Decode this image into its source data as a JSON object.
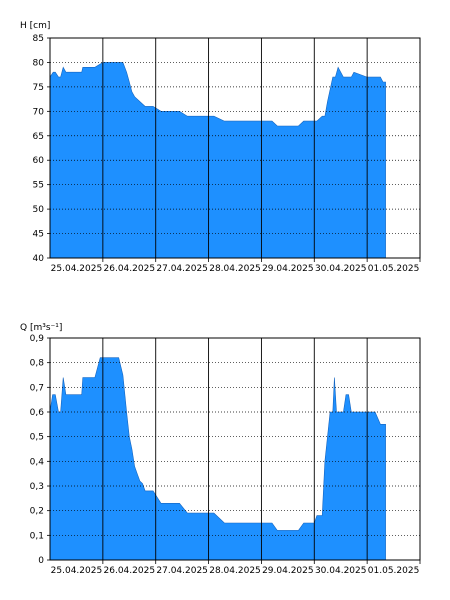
{
  "chart_data": [
    {
      "type": "area",
      "ylabel": "H [cm]",
      "ylim": [
        40,
        85
      ],
      "yticks": [
        "40",
        "45",
        "50",
        "55",
        "60",
        "65",
        "70",
        "75",
        "80",
        "85"
      ],
      "xlim": [
        0,
        7.0
      ],
      "x_tick_labels": [
        "25.04.2025",
        "26.04.2025",
        "27.04.2025",
        "28.04.2025",
        "29.04.2025",
        "30.04.2025",
        "01.05.2025"
      ],
      "grid": true,
      "fill_color": "#1e90ff",
      "series": [
        {
          "x": [
            0,
            0.06,
            0.1,
            0.16,
            0.2,
            0.25,
            0.3,
            0.33,
            0.5,
            0.6,
            0.62,
            0.8,
            0.85,
            1.0,
            1.3,
            1.38,
            1.45,
            1.5,
            1.55,
            1.6,
            1.7,
            1.8,
            1.95,
            2.1,
            2.3,
            2.45,
            2.6,
            3.0,
            3.1,
            3.3,
            3.5,
            3.7,
            3.9,
            4.2,
            4.3,
            4.5,
            4.6,
            4.7,
            4.8,
            5.0,
            5.05,
            5.15,
            5.2,
            5.25,
            5.35,
            5.4,
            5.45,
            5.55,
            5.6,
            5.65,
            5.7,
            5.75,
            6.0,
            6.2,
            6.25,
            6.3,
            6.35
          ],
          "y": [
            77,
            78,
            78,
            77,
            77,
            79,
            78,
            78,
            78,
            78,
            79,
            79,
            79,
            80,
            80,
            80,
            78,
            76,
            74,
            73,
            72,
            71,
            71,
            70,
            70,
            70,
            69,
            69,
            69,
            68,
            68,
            68,
            68,
            68,
            67,
            67,
            67,
            67,
            68,
            68,
            68,
            69,
            69,
            72,
            77,
            77,
            79,
            77,
            77,
            77,
            77,
            78,
            77,
            77,
            77,
            76,
            76
          ]
        }
      ]
    },
    {
      "type": "area",
      "ylabel": "Q [m³s⁻¹]",
      "ylim": [
        0,
        0.9
      ],
      "yticks": [
        "0",
        "0,1",
        "0,2",
        "0,3",
        "0,4",
        "0,5",
        "0,6",
        "0,7",
        "0,8",
        "0,9"
      ],
      "xlim": [
        0,
        7.0
      ],
      "x_tick_labels": [
        "25.04.2025",
        "26.04.2025",
        "27.04.2025",
        "28.04.2025",
        "29.04.2025",
        "30.04.2025",
        "01.05.2025"
      ],
      "grid": true,
      "fill_color": "#1e90ff",
      "series": [
        {
          "x": [
            0,
            0.05,
            0.1,
            0.16,
            0.2,
            0.25,
            0.3,
            0.33,
            0.5,
            0.6,
            0.62,
            0.8,
            0.85,
            0.95,
            1.0,
            1.3,
            1.38,
            1.45,
            1.5,
            1.55,
            1.6,
            1.65,
            1.7,
            1.75,
            1.8,
            1.95,
            2.1,
            2.3,
            2.45,
            2.6,
            3.0,
            3.1,
            3.3,
            3.5,
            3.7,
            3.9,
            4.2,
            4.3,
            4.5,
            4.6,
            4.7,
            4.8,
            5.0,
            5.05,
            5.15,
            5.2,
            5.3,
            5.35,
            5.38,
            5.42,
            5.45,
            5.5,
            5.55,
            5.6,
            5.65,
            5.7,
            5.75,
            6.0,
            6.15,
            6.25,
            6.35
          ],
          "y": [
            0.6,
            0.67,
            0.67,
            0.6,
            0.6,
            0.74,
            0.67,
            0.67,
            0.67,
            0.67,
            0.74,
            0.74,
            0.74,
            0.82,
            0.82,
            0.82,
            0.75,
            0.6,
            0.5,
            0.45,
            0.38,
            0.35,
            0.32,
            0.31,
            0.28,
            0.28,
            0.23,
            0.23,
            0.23,
            0.19,
            0.19,
            0.19,
            0.15,
            0.15,
            0.15,
            0.15,
            0.15,
            0.12,
            0.12,
            0.12,
            0.12,
            0.15,
            0.15,
            0.18,
            0.18,
            0.4,
            0.6,
            0.6,
            0.74,
            0.6,
            0.6,
            0.6,
            0.6,
            0.67,
            0.67,
            0.6,
            0.6,
            0.6,
            0.6,
            0.55,
            0.55
          ]
        }
      ]
    }
  ]
}
